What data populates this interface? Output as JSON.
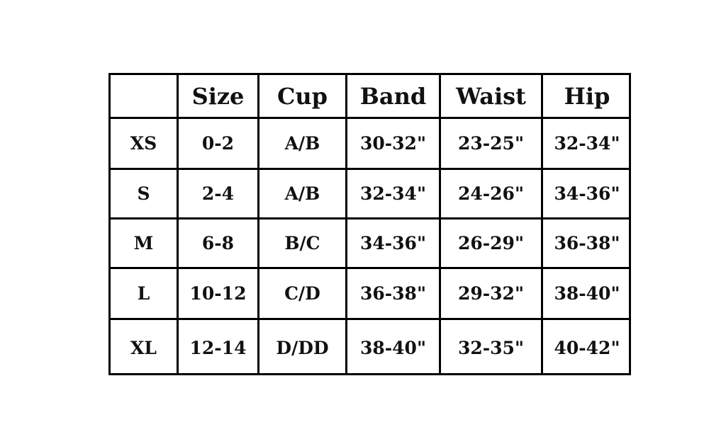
{
  "table": {
    "columns": [
      "Size",
      "Cup",
      "Band",
      "Waist",
      "Hip"
    ],
    "rows": [
      {
        "label": "XS",
        "cells": [
          "0-2",
          "A/B",
          "30-32\"",
          "23-25\"",
          "32-34\""
        ]
      },
      {
        "label": "S",
        "cells": [
          "2-4",
          "A/B",
          "32-34\"",
          "24-26\"",
          "34-36\""
        ]
      },
      {
        "label": "M",
        "cells": [
          "6-8",
          "B/C",
          "34-36\"",
          "26-29\"",
          "36-38\""
        ]
      },
      {
        "label": "L",
        "cells": [
          "10-12",
          "C/D",
          "36-38\"",
          "29-32\"",
          "38-40\""
        ]
      },
      {
        "label": "XL",
        "cells": [
          "12-14",
          "D/DD",
          "38-40\"",
          "32-35\"",
          "40-42\""
        ]
      }
    ]
  }
}
